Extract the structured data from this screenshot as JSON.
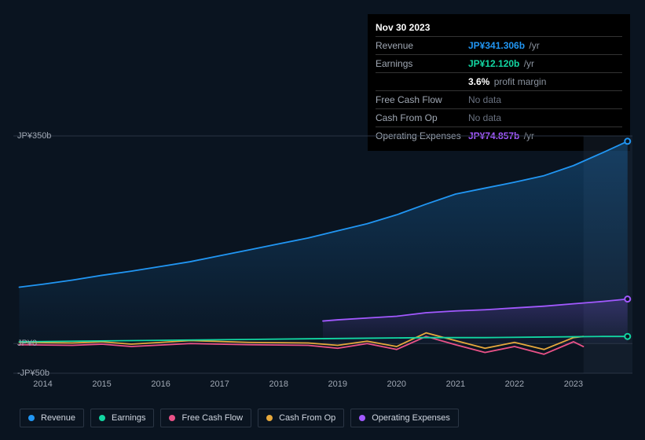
{
  "tooltip": {
    "date": "Nov 30 2023",
    "rows": [
      {
        "label": "Revenue",
        "value": "JP¥341.306b",
        "suffix": "/yr",
        "color": "#2196f3",
        "nodata": false
      },
      {
        "label": "Earnings",
        "value": "JP¥12.120b",
        "suffix": "/yr",
        "color": "#12d6a2",
        "nodata": false
      },
      {
        "label": "",
        "value": "3.6%",
        "suffix": "profit margin",
        "color": "#ffffff",
        "nodata": false
      },
      {
        "label": "Free Cash Flow",
        "value": "No data",
        "suffix": "",
        "color": "",
        "nodata": true
      },
      {
        "label": "Cash From Op",
        "value": "No data",
        "suffix": "",
        "color": "",
        "nodata": true
      },
      {
        "label": "Operating Expenses",
        "value": "JP¥74.857b",
        "suffix": "/yr",
        "color": "#a259ff",
        "nodata": false
      }
    ]
  },
  "chart": {
    "type": "line-area",
    "xlim": [
      2013.5,
      2024.0
    ],
    "ylim": [
      -50,
      350
    ],
    "y_ticks": [
      {
        "v": 350,
        "label": "JP¥350b"
      },
      {
        "v": 0,
        "label": "JP¥0"
      },
      {
        "v": -50,
        "label": "-JP¥50b"
      }
    ],
    "x_ticks": [
      2014,
      2015,
      2016,
      2017,
      2018,
      2019,
      2020,
      2021,
      2022,
      2023
    ],
    "grid_color": "#2a3544",
    "background_color": "#0a1420",
    "dim_band_start": 2023.17,
    "series": [
      {
        "name": "Revenue",
        "color": "#2196f3",
        "fill": true,
        "fill_color_top": "#2196f3",
        "fill_opacity_top": 0.28,
        "fill_opacity_bottom": 0.02,
        "data": [
          [
            2013.6,
            95
          ],
          [
            2014.0,
            100
          ],
          [
            2014.5,
            107
          ],
          [
            2015.0,
            115
          ],
          [
            2015.5,
            122
          ],
          [
            2016.0,
            130
          ],
          [
            2016.5,
            138
          ],
          [
            2017.0,
            148
          ],
          [
            2017.5,
            158
          ],
          [
            2018.0,
            168
          ],
          [
            2018.5,
            178
          ],
          [
            2019.0,
            190
          ],
          [
            2019.5,
            202
          ],
          [
            2020.0,
            217
          ],
          [
            2020.5,
            235
          ],
          [
            2021.0,
            252
          ],
          [
            2021.5,
            262
          ],
          [
            2022.0,
            272
          ],
          [
            2022.5,
            283
          ],
          [
            2023.0,
            300
          ],
          [
            2023.5,
            322
          ],
          [
            2023.917,
            341
          ]
        ]
      },
      {
        "name": "Operating Expenses",
        "color": "#a259ff",
        "fill": true,
        "fill_color_top": "#a259ff",
        "fill_opacity_top": 0.22,
        "fill_opacity_bottom": 0.02,
        "data": [
          [
            2018.75,
            38
          ],
          [
            2019.0,
            40
          ],
          [
            2019.5,
            43
          ],
          [
            2020.0,
            46
          ],
          [
            2020.5,
            52
          ],
          [
            2021.0,
            55
          ],
          [
            2021.5,
            57
          ],
          [
            2022.0,
            60
          ],
          [
            2022.5,
            63
          ],
          [
            2023.0,
            67
          ],
          [
            2023.5,
            71
          ],
          [
            2023.917,
            75
          ]
        ]
      },
      {
        "name": "Cash From Op",
        "color": "#e6a83c",
        "fill": false,
        "data": [
          [
            2013.6,
            2
          ],
          [
            2014.5,
            1
          ],
          [
            2015.0,
            3
          ],
          [
            2015.5,
            -1
          ],
          [
            2016.5,
            5
          ],
          [
            2017.5,
            2
          ],
          [
            2018.5,
            1
          ],
          [
            2019.0,
            -3
          ],
          [
            2019.5,
            4
          ],
          [
            2020.0,
            -5
          ],
          [
            2020.5,
            18
          ],
          [
            2021.0,
            5
          ],
          [
            2021.5,
            -8
          ],
          [
            2022.0,
            2
          ],
          [
            2022.5,
            -10
          ],
          [
            2023.0,
            10
          ],
          [
            2023.167,
            12
          ]
        ]
      },
      {
        "name": "Free Cash Flow",
        "color": "#ea5288",
        "fill": false,
        "data": [
          [
            2013.6,
            -2
          ],
          [
            2014.5,
            -3
          ],
          [
            2015.0,
            -1
          ],
          [
            2015.5,
            -5
          ],
          [
            2016.5,
            0
          ],
          [
            2017.5,
            -2
          ],
          [
            2018.5,
            -3
          ],
          [
            2019.0,
            -8
          ],
          [
            2019.5,
            0
          ],
          [
            2020.0,
            -10
          ],
          [
            2020.5,
            12
          ],
          [
            2021.0,
            -2
          ],
          [
            2021.5,
            -15
          ],
          [
            2022.0,
            -5
          ],
          [
            2022.5,
            -18
          ],
          [
            2023.0,
            3
          ],
          [
            2023.167,
            -5
          ]
        ]
      },
      {
        "name": "Earnings",
        "color": "#12d6a2",
        "fill": false,
        "data": [
          [
            2013.6,
            3
          ],
          [
            2014.5,
            4
          ],
          [
            2015.5,
            5
          ],
          [
            2016.5,
            6
          ],
          [
            2017.5,
            7
          ],
          [
            2018.5,
            8
          ],
          [
            2019.5,
            9
          ],
          [
            2020.5,
            10
          ],
          [
            2021.5,
            10
          ],
          [
            2022.5,
            11
          ],
          [
            2023.5,
            12
          ],
          [
            2023.917,
            12
          ]
        ]
      }
    ],
    "end_markers": [
      {
        "x": 2023.917,
        "y": 341,
        "color": "#2196f3"
      },
      {
        "x": 2023.917,
        "y": 75,
        "color": "#a259ff"
      },
      {
        "x": 2023.917,
        "y": 12,
        "color": "#12d6a2"
      }
    ]
  },
  "legend": [
    {
      "label": "Revenue",
      "color": "#2196f3"
    },
    {
      "label": "Earnings",
      "color": "#12d6a2"
    },
    {
      "label": "Free Cash Flow",
      "color": "#ea5288"
    },
    {
      "label": "Cash From Op",
      "color": "#e6a83c"
    },
    {
      "label": "Operating Expenses",
      "color": "#a259ff"
    }
  ]
}
